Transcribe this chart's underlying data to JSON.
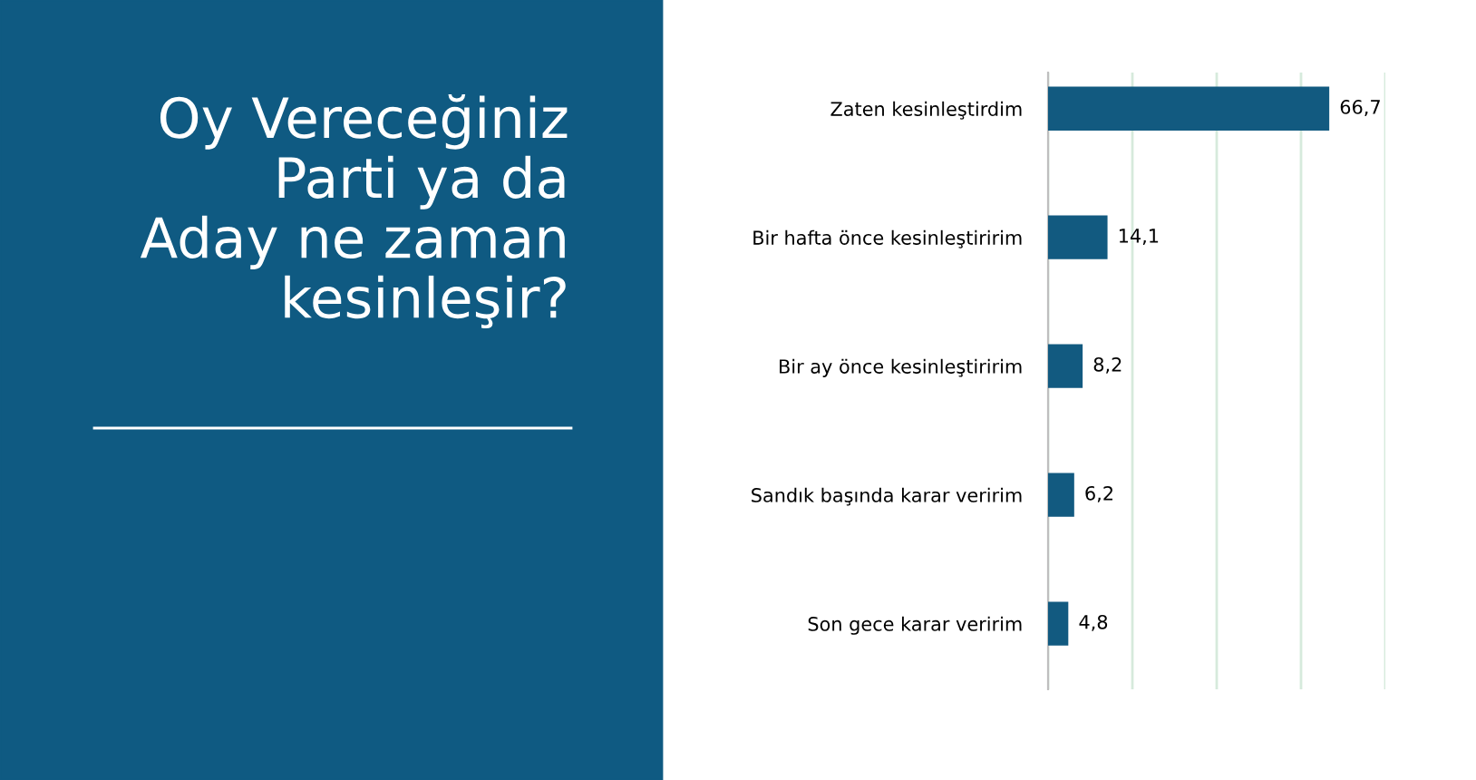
{
  "chart_data": {
    "type": "bar",
    "orientation": "horizontal",
    "title": "Oy Vereceğiniz\nParti ya da\nAday ne zaman\nkesinleşir?",
    "categories": [
      "Zaten kesinleştirdim",
      "Bir hafta önce kesinleştiririm",
      "Bir ay önce kesinleştiririm",
      "Sandık başında karar veririm",
      "Son gece karar veririm"
    ],
    "values": [
      66.7,
      14.1,
      8.2,
      6.2,
      4.8
    ],
    "value_labels": [
      "66,7",
      "14,1",
      "8,2",
      "6,2",
      "4,8"
    ],
    "color": "#125a80",
    "xlim": [
      0,
      80
    ],
    "xticks": [
      {
        "value": 0,
        "label": null
      },
      {
        "value": 20,
        "label": null
      },
      {
        "value": 40,
        "label": null
      },
      {
        "value": 60,
        "label": null
      },
      {
        "value": 80,
        "label": null
      }
    ],
    "grid": "x",
    "tick_labels": "y"
  }
}
